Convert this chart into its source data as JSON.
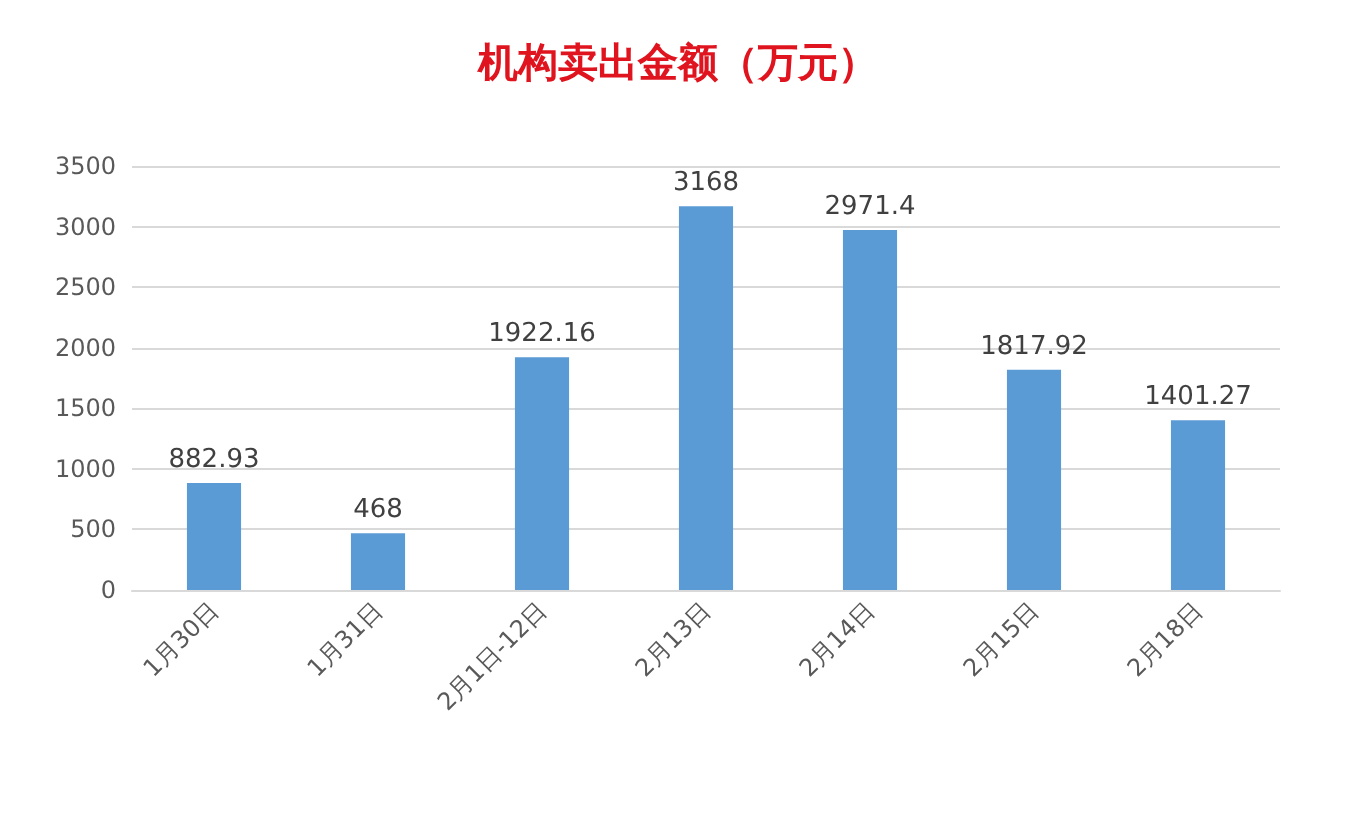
{
  "chart_data": {
    "type": "bar",
    "title": "机构卖出金额（万元）",
    "categories": [
      "1月30日",
      "1月31日",
      "2月1日-12日",
      "2月13日",
      "2月14日",
      "2月15日",
      "2月18日"
    ],
    "values": [
      882.93,
      468,
      1922.16,
      3168,
      2971.4,
      1817.92,
      1401.27
    ],
    "color": "#5b9bd5",
    "ylim": [
      0,
      3500
    ],
    "yticks": [
      0,
      500,
      1000,
      1500,
      2000,
      2500,
      3000,
      3500
    ],
    "grid": "y",
    "data_labels": true
  }
}
